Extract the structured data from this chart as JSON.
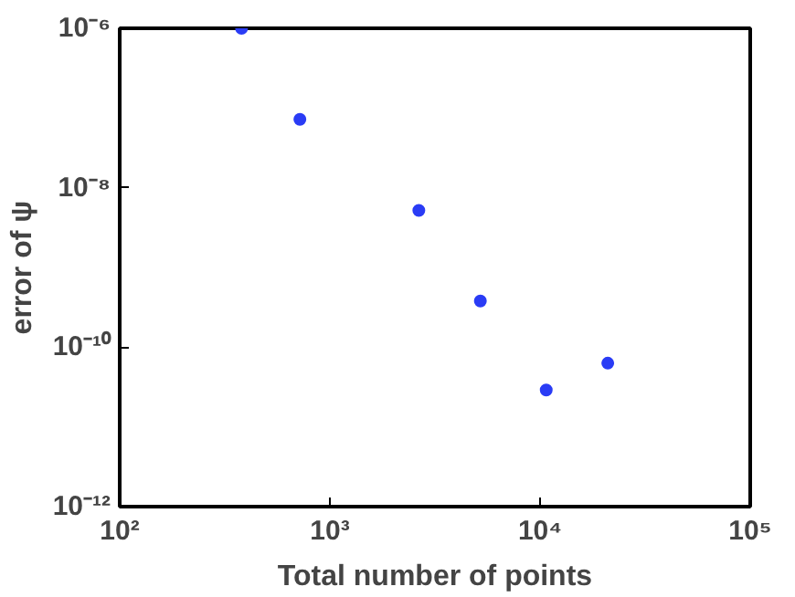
{
  "chart_data": {
    "type": "scatter",
    "xlabel": "Total number of points",
    "ylabel": "error of ψ",
    "log": "xy",
    "grid": false,
    "marker": "circle",
    "x": [
      380,
      720,
      2650,
      5200,
      10700,
      21000
    ],
    "series": [
      {
        "color": "#2a3cf5",
        "values": [
          1e-06,
          7.2e-08,
          5.2e-09,
          3.8e-10,
          2.9e-11,
          6.3e-11
        ]
      }
    ],
    "xlim": [
      100,
      100000
    ],
    "ylim": [
      1e-12,
      1e-06
    ],
    "xticks": [
      {
        "value": 100,
        "label": "10²"
      },
      {
        "value": 1000,
        "label": "10³"
      },
      {
        "value": 10000,
        "label": "10⁴"
      },
      {
        "value": 100000,
        "label": "10⁵"
      }
    ],
    "yticks": [
      {
        "value": 1e-12,
        "label": "10⁻¹²"
      },
      {
        "value": 1e-10,
        "label": "10⁻¹⁰"
      },
      {
        "value": 1e-08,
        "label": "10⁻⁸"
      },
      {
        "value": 1e-06,
        "label": "10⁻⁶"
      }
    ]
  }
}
